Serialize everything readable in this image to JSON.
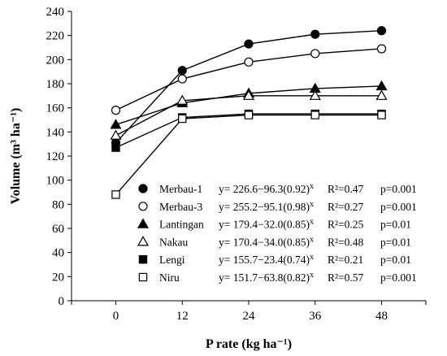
{
  "chart_data": {
    "type": "line",
    "title": "",
    "xlabel": "P rate (kg ha⁻¹)",
    "ylabel": "Volume (m³ ha⁻¹)",
    "x": [
      0,
      12,
      24,
      36,
      48
    ],
    "xlim": [
      -8,
      56
    ],
    "ylim": [
      0,
      240
    ],
    "yticks": [
      0,
      20,
      40,
      60,
      80,
      100,
      120,
      140,
      160,
      180,
      200,
      220,
      240
    ],
    "grid": false,
    "legend_position": "bottom-center",
    "series": [
      {
        "name": "Merbau-1",
        "marker": "circle-filled",
        "values": [
          131,
          191,
          213,
          221,
          224
        ],
        "equation": "y= 226.6−96.3(0.92)",
        "exponent": "x",
        "r2": "R²=0.47",
        "p": "p=0.001"
      },
      {
        "name": "Merbau-3",
        "marker": "circle-open",
        "values": [
          158,
          184,
          198,
          205,
          209
        ],
        "equation": "y= 255.2−95.1(0.98)",
        "exponent": "x",
        "r2": "R²=0.27",
        "p": "p=0.001"
      },
      {
        "name": "Lantingan",
        "marker": "triangle-filled",
        "values": [
          146,
          164,
          172,
          176,
          178
        ],
        "equation": "y= 179.4−32.0(0.85)",
        "exponent": "x",
        "r2": "R²=0.25",
        "p": "p=0.01"
      },
      {
        "name": "Nakau",
        "marker": "triangle-open",
        "values": [
          137,
          166,
          170,
          170,
          170
        ],
        "equation": "y= 170.4−34.0(0.85)",
        "exponent": "x",
        "r2": "R²=0.48",
        "p": "p=0.01"
      },
      {
        "name": "Lengi",
        "marker": "square-filled",
        "values": [
          127,
          152,
          155,
          155,
          155
        ],
        "equation": "y= 155.7−23.4(0.74)",
        "exponent": "x",
        "r2": "R²=0.21",
        "p": "p=0.01"
      },
      {
        "name": "Niru",
        "marker": "square-open",
        "values": [
          88,
          151,
          154,
          154,
          154
        ],
        "equation": "y= 151.7−63.8(0.82)",
        "exponent": "x",
        "r2": "R²=0.57",
        "p": "p=0.001"
      }
    ]
  }
}
